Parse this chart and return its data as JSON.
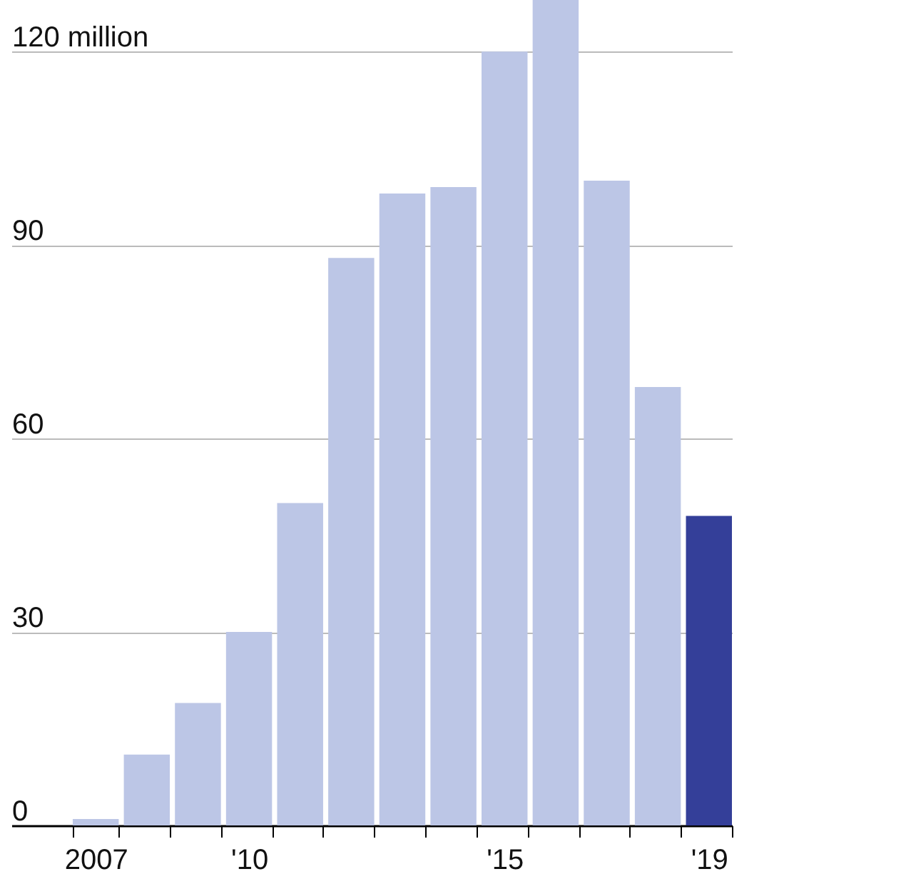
{
  "chart_data": {
    "type": "bar",
    "categories": [
      "2007",
      null,
      null,
      "'10",
      null,
      null,
      null,
      null,
      "'15",
      null,
      null,
      null,
      "'19"
    ],
    "values": [
      1,
      11,
      19,
      30,
      50,
      88,
      98,
      99,
      120,
      128,
      100,
      68,
      48
    ],
    "colors": [
      "#bcc6e6",
      "#bcc6e6",
      "#bcc6e6",
      "#bcc6e6",
      "#bcc6e6",
      "#bcc6e6",
      "#bcc6e6",
      "#bcc6e6",
      "#bcc6e6",
      "#bcc6e6",
      "#bcc6e6",
      "#bcc6e6",
      "#343f99"
    ],
    "ylim": [
      0,
      128
    ],
    "yticks": [
      0,
      30,
      60,
      90,
      {
        "value": 120,
        "label": "120 million"
      }
    ],
    "grid": "y"
  }
}
